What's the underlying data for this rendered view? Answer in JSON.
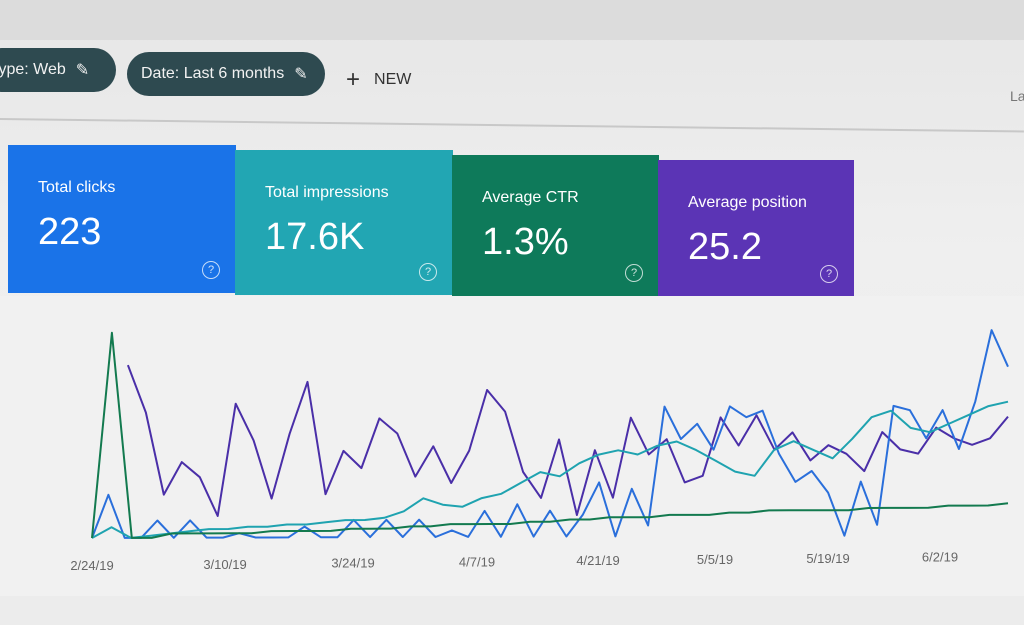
{
  "filters": [
    {
      "label": "type: Web",
      "icon": "pencil-icon"
    },
    {
      "label": "Date: Last 6 months",
      "icon": "pencil-icon"
    }
  ],
  "new_button": {
    "icon": "plus-icon",
    "label": "NEW"
  },
  "cut_off_text": "La",
  "metrics": [
    {
      "label": "Total clicks",
      "value": "223",
      "color": "#1a73e8",
      "icon": "help-icon"
    },
    {
      "label": "Total impressions",
      "value": "17.6K",
      "color": "#22a6b3",
      "icon": "help-icon"
    },
    {
      "label": "Average CTR",
      "value": "1.3%",
      "color": "#0e7a5a",
      "icon": "help-icon"
    },
    {
      "label": "Average position",
      "value": "25.2",
      "color": "#5b34b5",
      "icon": "help-icon"
    }
  ],
  "chart_data": {
    "type": "line",
    "x_tick_labels": [
      "2/24/19",
      "3/10/19",
      "3/24/19",
      "4/7/19",
      "4/21/19",
      "5/5/19",
      "5/19/19",
      "6/2/19"
    ],
    "grid": false,
    "series": [
      {
        "color": "#4a2fa8",
        "values": [
          100,
          null,
          80,
          58,
          20,
          35,
          28,
          10,
          62,
          45,
          18,
          48,
          72,
          20,
          40,
          32,
          55,
          48,
          28,
          42,
          25,
          40,
          68,
          58,
          30,
          18,
          45,
          10,
          40,
          18,
          55,
          38,
          45,
          25,
          28,
          55,
          42,
          56,
          40,
          48,
          35,
          42,
          38,
          30,
          48,
          40,
          38,
          50,
          45,
          42,
          45,
          55
        ]
      },
      {
        "color": "#2a6fdb",
        "values": [
          0,
          20,
          0,
          0,
          8,
          0,
          8,
          0,
          0,
          2,
          0,
          0,
          0,
          5,
          0,
          0,
          8,
          0,
          8,
          0,
          8,
          0,
          3,
          0,
          12,
          0,
          15,
          0,
          12,
          0,
          10,
          25,
          0,
          22,
          5,
          60,
          45,
          52,
          40,
          60,
          55,
          58,
          38,
          25,
          30,
          20,
          0,
          25,
          5,
          60,
          58,
          45,
          58,
          40,
          62,
          95,
          78
        ]
      },
      {
        "color": "#1fa3b0",
        "values": [
          0,
          5,
          0,
          1,
          2,
          3,
          4,
          4,
          5,
          5,
          6,
          6,
          7,
          8,
          8,
          9,
          12,
          18,
          15,
          14,
          18,
          20,
          25,
          30,
          28,
          34,
          38,
          40,
          38,
          42,
          44,
          40,
          35,
          30,
          28,
          40,
          44,
          40,
          36,
          45,
          55,
          58,
          50,
          48,
          52,
          56,
          60,
          62
        ]
      },
      {
        "color": "#137a4f",
        "values": [
          0,
          95,
          0,
          0,
          2,
          2,
          2,
          2,
          2,
          3,
          3,
          3,
          3,
          4,
          4,
          4,
          5,
          5,
          6,
          6,
          6,
          6,
          7,
          7,
          8,
          8,
          9,
          9,
          9,
          10,
          10,
          10,
          11,
          11,
          12,
          12,
          12,
          12,
          12,
          13,
          13,
          13,
          13,
          14,
          14,
          14,
          15
        ]
      }
    ]
  }
}
